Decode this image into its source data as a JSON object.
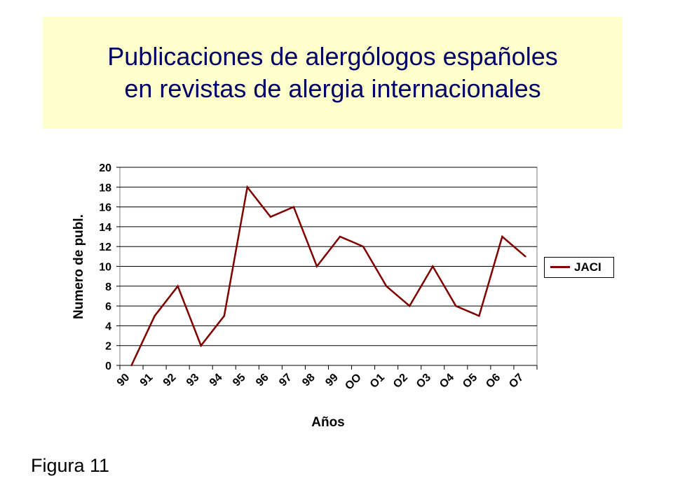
{
  "slide": {
    "title_line1": "Publicaciones de alergólogos españoles",
    "title_line2": "en revistas de alergia internacionales",
    "figure_label": "Figura 11",
    "title_bg_color": "#ffffcc",
    "title_text_color": "#000066"
  },
  "chart_data": {
    "type": "line",
    "categories": [
      "90",
      "91",
      "92",
      "93",
      "94",
      "95",
      "96",
      "97",
      "98",
      "99",
      "OO",
      "O1",
      "O2",
      "O3",
      "O4",
      "O5",
      "O6",
      "O7"
    ],
    "series": [
      {
        "name": "JACI",
        "color": "#800000",
        "values": [
          0,
          5,
          8,
          2,
          5,
          18,
          15,
          16,
          10,
          13,
          12,
          8,
          6,
          10,
          6,
          5,
          13,
          11
        ]
      }
    ],
    "xlabel": "Años",
    "ylabel": "Numero de publ.",
    "ylim": [
      0,
      20
    ],
    "yticks": [
      0,
      2,
      4,
      6,
      8,
      10,
      12,
      14,
      16,
      18,
      20
    ],
    "grid": true,
    "legend_position": "right"
  }
}
